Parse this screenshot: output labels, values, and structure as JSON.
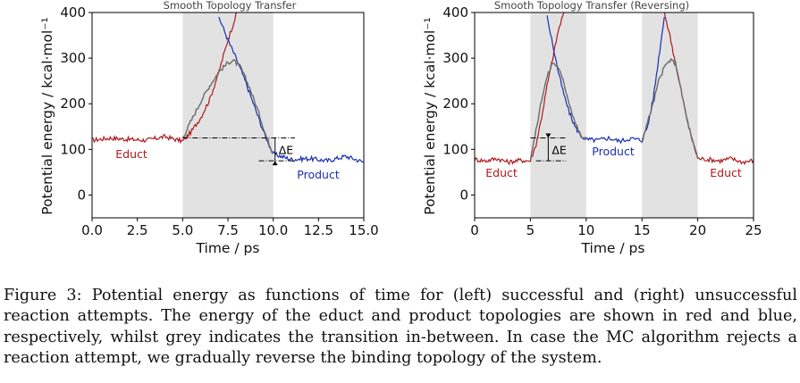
{
  "figure": {
    "caption_label": "Figure 3:",
    "caption_text": "Potential energy as functions of time for (left) successful and (right) unsuccessful reaction attempts. The energy of the educt and product topologies are shown in red and blue, respectively, whilst grey indicates the transition in-between. In case the MC algorithm rejects a reaction attempt, we gradually reverse the binding topology of the system."
  },
  "colors": {
    "educt": "#b0191d",
    "product": "#1a2fb0",
    "transition": "#6b6b6b",
    "shade": "#e2e2e2"
  },
  "chart_data": [
    {
      "type": "line",
      "title": "Smooth Topology Transfer",
      "xlabel": "Time / ps",
      "ylabel": "Potential energy / kcal·mol⁻¹",
      "xlim": [
        0,
        15
      ],
      "ylim": [
        -50,
        400
      ],
      "xticks": [
        "0.0",
        "2.5",
        "5.0",
        "7.5",
        "10.0",
        "12.5",
        "15.0"
      ],
      "yticks": [
        "0",
        "100",
        "200",
        "300",
        "400"
      ],
      "shaded_regions": [
        [
          5,
          10
        ]
      ],
      "annotations": {
        "delta_e": "ΔE",
        "educt_label": "Educt",
        "product_label": "Product"
      },
      "delta_e_levels": [
        125,
        75
      ],
      "series": [
        {
          "name": "Educt",
          "role": "educt",
          "x": [
            0,
            1,
            2,
            3,
            4,
            5,
            5.5,
            6,
            6.5,
            7,
            7.5,
            8
          ],
          "y": [
            120,
            125,
            122,
            120,
            128,
            118,
            140,
            170,
            210,
            270,
            340,
            400
          ]
        },
        {
          "name": "Product",
          "role": "product",
          "x": [
            7.0,
            7.5,
            8,
            8.5,
            9,
            9.5,
            10,
            11,
            12,
            13,
            14,
            15
          ],
          "y": [
            390,
            340,
            295,
            245,
            190,
            135,
            90,
            78,
            80,
            75,
            85,
            72
          ]
        },
        {
          "role": "transition",
          "x": [
            5,
            5.5,
            6,
            6.5,
            7,
            7.5,
            7.8,
            8.2,
            8.7,
            9.2,
            9.6,
            10
          ],
          "y": [
            125,
            165,
            205,
            240,
            270,
            290,
            295,
            280,
            235,
            180,
            130,
            90
          ]
        }
      ]
    },
    {
      "type": "line",
      "title": "Smooth Topology Transfer  (Reversing)",
      "xlabel": "Time / ps",
      "ylabel": "Potential energy / kcal·mol⁻¹",
      "xlim": [
        0,
        25
      ],
      "ylim": [
        -50,
        400
      ],
      "xticks": [
        "0",
        "5",
        "10",
        "15",
        "20",
        "25"
      ],
      "yticks": [
        "0",
        "100",
        "200",
        "300",
        "400"
      ],
      "shaded_regions": [
        [
          5,
          10
        ],
        [
          15,
          20
        ]
      ],
      "annotations": {
        "delta_e": "ΔE",
        "educt_label_left": "Educt",
        "product_label": "Product",
        "educt_label_right": "Educt"
      },
      "delta_e_levels": [
        125,
        75
      ],
      "series": [
        {
          "name": "Educt",
          "role": "educt",
          "x": [
            0,
            1,
            2,
            3,
            4,
            5,
            5.5,
            6,
            6.5,
            7,
            7.5,
            8
          ],
          "y": [
            78,
            75,
            80,
            72,
            76,
            75,
            110,
            170,
            240,
            300,
            360,
            400
          ]
        },
        {
          "name": "Educt",
          "role": "educt",
          "x": [
            17,
            17.5,
            18,
            18.5,
            19,
            19.5,
            20,
            21,
            22,
            23,
            24,
            25
          ],
          "y": [
            400,
            350,
            290,
            230,
            170,
            120,
            80,
            78,
            75,
            80,
            72,
            76
          ]
        },
        {
          "name": "Product",
          "role": "product",
          "x": [
            6.5,
            7,
            7.5,
            8,
            8.5,
            9,
            9.5,
            10,
            11,
            12,
            13,
            14,
            15,
            15.5,
            16,
            16.5,
            17
          ],
          "y": [
            390,
            330,
            270,
            220,
            180,
            150,
            130,
            122,
            120,
            125,
            118,
            124,
            120,
            150,
            210,
            300,
            390
          ]
        },
        {
          "role": "transition",
          "x": [
            5,
            5.5,
            6,
            6.5,
            7,
            7.5,
            8,
            8.5,
            9,
            9.5,
            10
          ],
          "y": [
            80,
            140,
            210,
            260,
            290,
            280,
            245,
            200,
            160,
            130,
            120
          ]
        },
        {
          "role": "transition",
          "x": [
            15,
            15.5,
            16,
            16.5,
            17,
            17.5,
            18,
            18.5,
            19,
            19.5,
            20
          ],
          "y": [
            120,
            160,
            200,
            250,
            280,
            295,
            290,
            230,
            170,
            120,
            80
          ]
        }
      ]
    }
  ]
}
